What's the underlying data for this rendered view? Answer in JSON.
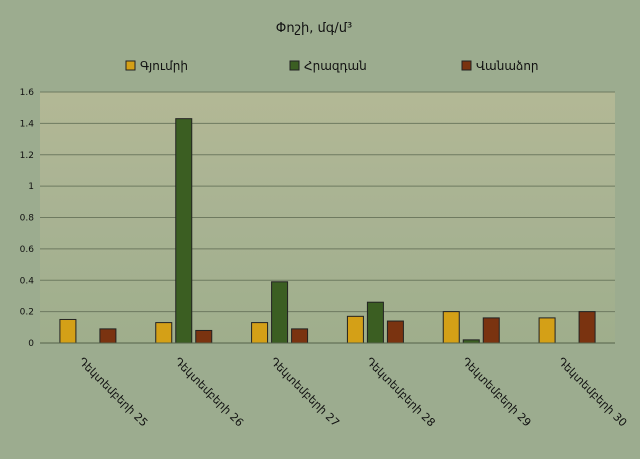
{
  "chart_data": {
    "type": "bar",
    "title": "Փոշի, մգ/մ³",
    "categories": [
      "Դեկտեմբերի 25",
      "Դեկտեմբերի 26",
      "Դեկտեմբերի 27",
      "Դեկտեմբերի 28",
      "Դեկտեմբերի 29",
      "Դեկտեմբերի 30"
    ],
    "series": [
      {
        "name": "Գյումրի",
        "color": "#d4a017",
        "values": [
          0.15,
          0.13,
          0.13,
          0.17,
          0.2,
          0.16
        ]
      },
      {
        "name": "Հրազդան",
        "color": "#3b5e22",
        "values": [
          null,
          1.43,
          0.39,
          0.26,
          0.02,
          null
        ]
      },
      {
        "name": "Վանաձոր",
        "color": "#7a3310",
        "values": [
          0.09,
          0.08,
          0.09,
          0.14,
          0.16,
          0.2
        ]
      }
    ],
    "ylim": [
      0,
      1.6
    ],
    "yticks": [
      0,
      0.2,
      0.4,
      0.6,
      0.8,
      1,
      1.2,
      1.4,
      1.6
    ],
    "ytick_labels": [
      "0",
      "0.2",
      "0.4",
      "0.6",
      "0.8",
      "1",
      "1.2",
      "1.4",
      "1.6"
    ],
    "grid": true,
    "legend_position": "top"
  }
}
